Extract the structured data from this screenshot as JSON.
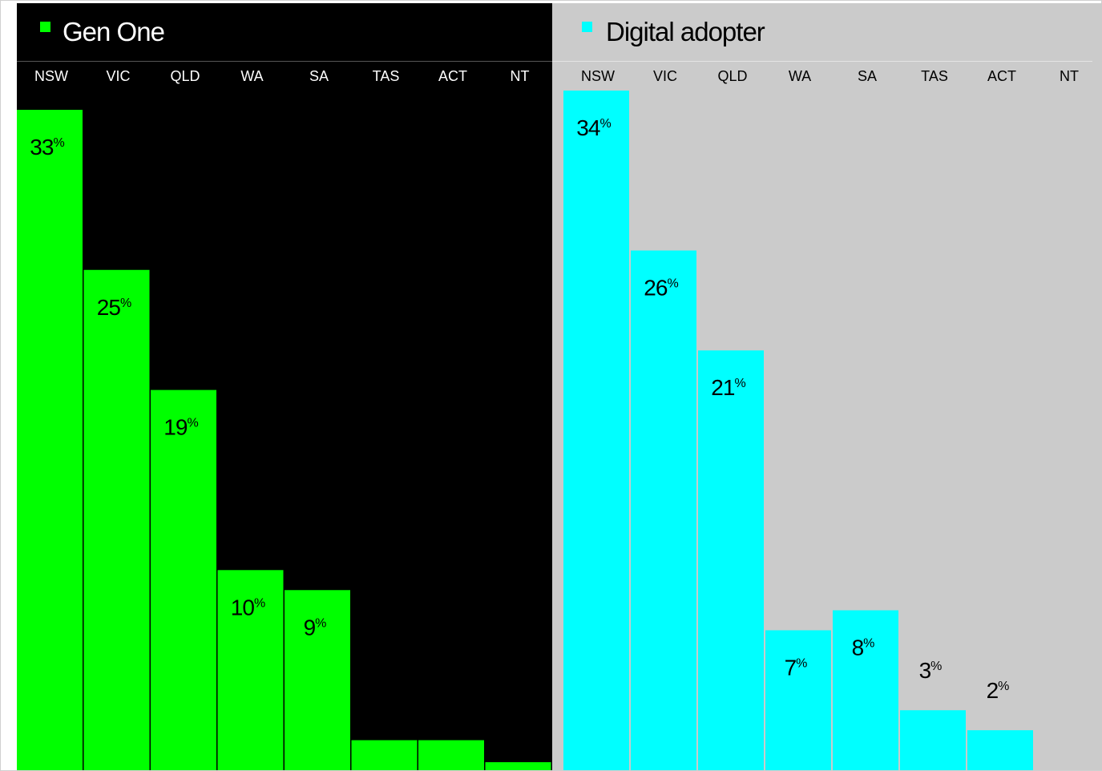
{
  "chart_data": [
    {
      "type": "bar",
      "title": "Gen One",
      "categories": [
        "NSW",
        "VIC",
        "QLD",
        "WA",
        "SA",
        "TAS",
        "ACT",
        "NT"
      ],
      "values": [
        33,
        25,
        19,
        10,
        9,
        1.5,
        1.5,
        0.4
      ],
      "value_labels": [
        "33",
        "25",
        "19",
        "10",
        "9",
        "",
        "",
        ""
      ],
      "unit_label": "%",
      "xlabel": "",
      "ylabel": "",
      "ylim": [
        0,
        33
      ],
      "grid": false,
      "legend": "top-left",
      "bar_color": "#00ff00",
      "background": "#000000",
      "title_color": "#ffffff",
      "label_color": "#ffffff"
    },
    {
      "type": "bar",
      "title": "Digital adopter",
      "categories": [
        "NSW",
        "VIC",
        "QLD",
        "WA",
        "SA",
        "TAS",
        "ACT",
        "NT"
      ],
      "values": [
        34,
        26,
        21,
        7,
        8,
        3,
        2,
        0
      ],
      "value_labels": [
        "34",
        "26",
        "21",
        "7",
        "8",
        "3",
        "2",
        ""
      ],
      "unit_label": "%",
      "xlabel": "",
      "ylabel": "",
      "ylim": [
        0,
        34
      ],
      "grid": false,
      "legend": "top-left",
      "bar_color": "#00ffff",
      "background": "#cbcbcb",
      "title_color": "#000000",
      "label_color": "#000000"
    }
  ]
}
